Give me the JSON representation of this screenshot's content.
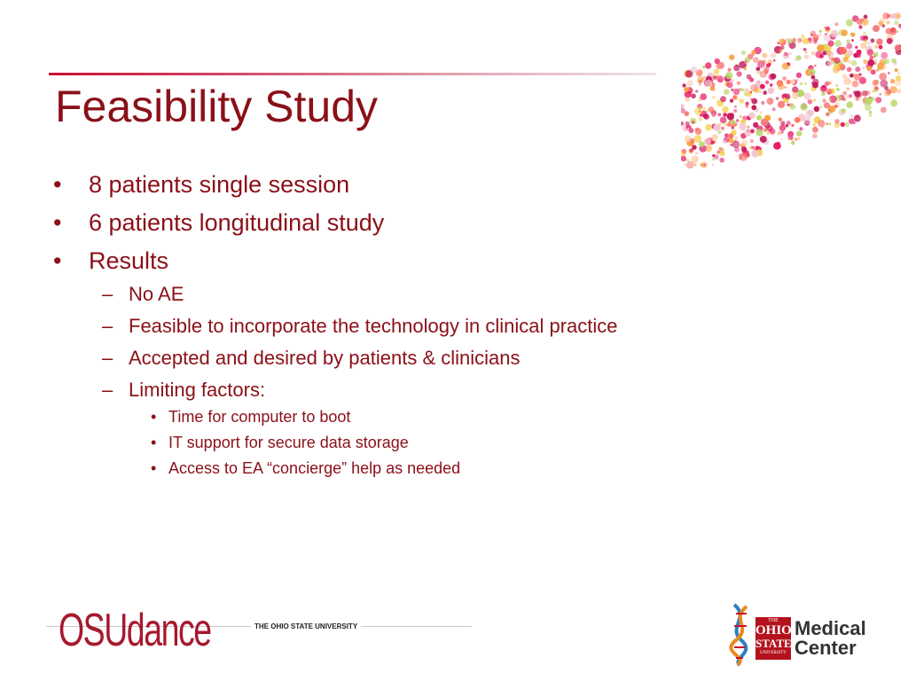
{
  "slide": {
    "title": "Feasibility Study",
    "bullets": [
      {
        "marker": "•",
        "text": "8 patients single session"
      },
      {
        "marker": "•",
        "text": "6 patients longitudinal study"
      },
      {
        "marker": "•",
        "text": "Results"
      },
      {
        "marker": "–",
        "text": "No AE"
      },
      {
        "marker": "–",
        "text": "Feasible to incorporate the technology in clinical practice"
      },
      {
        "marker": "–",
        "text": "Accepted and desired by patients & clinicians"
      },
      {
        "marker": "–",
        "text": "Limiting factors:"
      },
      {
        "marker": "•",
        "text": "Time for computer to boot"
      },
      {
        "marker": "•",
        "text": "IT support for secure data storage"
      },
      {
        "marker": "•",
        "text": "Access to EA “concierge” help as needed"
      }
    ]
  },
  "footer": {
    "brand": "OSUdance",
    "university": "THE OHIO STATE UNIVERSITY",
    "seal": {
      "line1": "THE",
      "line2": "OHIO",
      "line3": "STATE",
      "line4": "UNIVERSITY"
    },
    "medical_line1": "Medical",
    "medical_line2": "Center"
  },
  "colors": {
    "text": "#8b1018",
    "accent": "#c8102e"
  }
}
